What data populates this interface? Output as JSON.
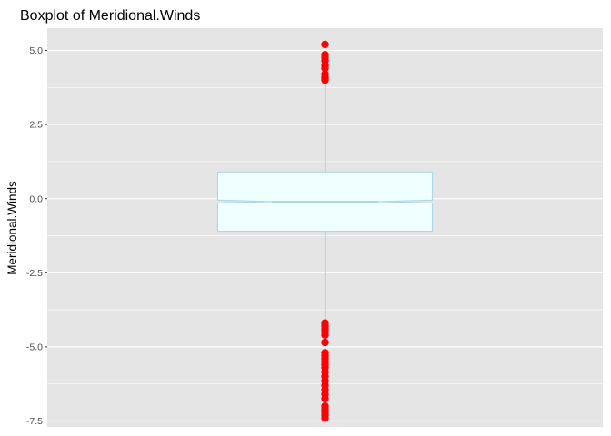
{
  "chart_data": {
    "type": "boxplot",
    "title": "Boxplot of Meridional.Winds",
    "xlabel": "",
    "ylabel": "Meridional.Winds",
    "ylim": [
      -7.7,
      5.75
    ],
    "yticks": [
      5.0,
      2.5,
      0.0,
      -2.5,
      -5.0,
      -7.5
    ],
    "ytick_labels": [
      "5.0",
      "2.5",
      "0.0",
      "-2.5",
      "-5.0",
      "-7.5"
    ],
    "grid": true,
    "notched": true,
    "box": {
      "q1": -1.1,
      "median": -0.1,
      "q3": 0.9,
      "whisker_low": -4.2,
      "whisker_high": 3.9,
      "notch_low": -0.15,
      "notch_high": -0.05
    },
    "outliers": [
      5.2,
      4.85,
      4.75,
      4.65,
      4.5,
      4.4,
      4.2,
      4.1,
      4.05,
      4.0,
      -4.2,
      -4.3,
      -4.4,
      -4.5,
      -4.6,
      -4.85,
      -5.2,
      -5.3,
      -5.4,
      -5.5,
      -5.6,
      -5.7,
      -5.85,
      -6.0,
      -6.15,
      -6.3,
      -6.45,
      -6.6,
      -6.75,
      -7.0,
      -7.1,
      -7.2,
      -7.3,
      -7.4
    ],
    "colors": {
      "panel": "#e5e5e5",
      "grid": "#ffffff",
      "box_fill": "#f0ffff",
      "box_line": "#add8e6",
      "outlier": "#ff0000"
    }
  }
}
